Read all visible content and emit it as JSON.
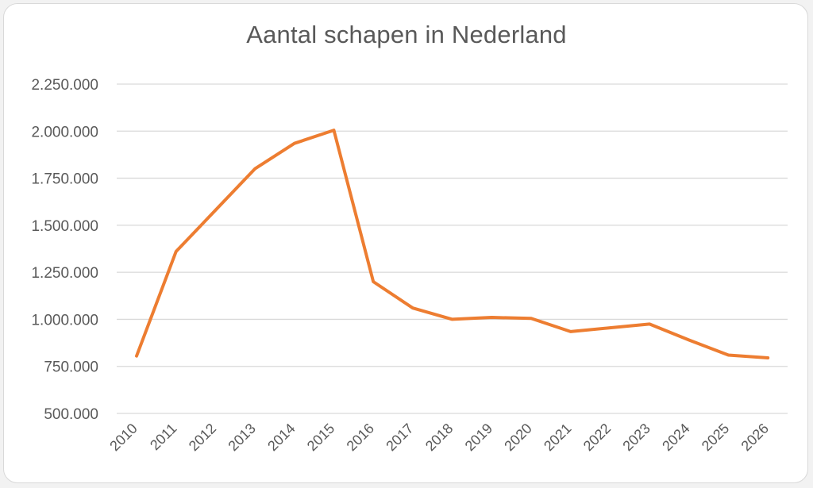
{
  "chart_data": {
    "type": "line",
    "title": "Aantal schapen in Nederland",
    "xlabel": "",
    "ylabel": "",
    "categories": [
      "2010",
      "2011",
      "2012",
      "2013",
      "2014",
      "2015",
      "2016",
      "2017",
      "2018",
      "2019",
      "2020",
      "2021",
      "2022",
      "2023",
      "2024",
      "2025",
      "2026"
    ],
    "y_tick_values": [
      500000,
      750000,
      1000000,
      1250000,
      1500000,
      1750000,
      2000000,
      2250000
    ],
    "y_tick_labels": [
      "500.000",
      "750.000",
      "1.000.000",
      "1.250.000",
      "1.500.000",
      "1.750.000",
      "2.000.000",
      "2.250.000"
    ],
    "ylim": [
      500000,
      2250000
    ],
    "grid": true,
    "legend": "none",
    "series": [
      {
        "color": "#ed7d31",
        "values": [
          805000,
          1360000,
          1580000,
          1800000,
          1935000,
          2005000,
          1200000,
          1060000,
          1000000,
          1010000,
          1005000,
          935000,
          955000,
          975000,
          890000,
          810000,
          795000
        ]
      }
    ]
  }
}
